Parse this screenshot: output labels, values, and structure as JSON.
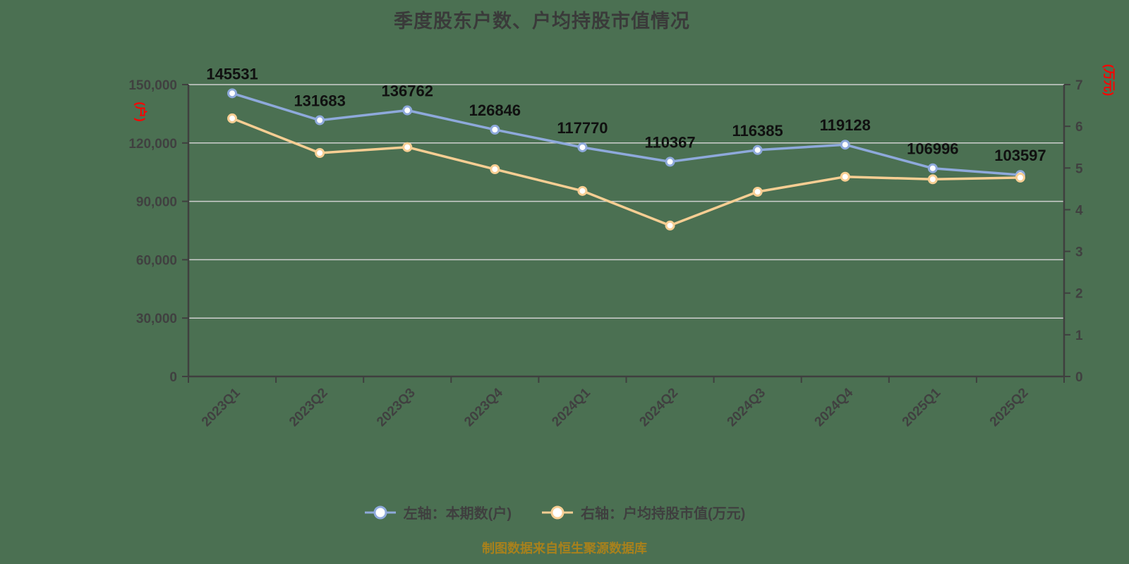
{
  "title": "季度股东户数、户均持股市值情况",
  "footer": "制图数据来自恒生聚源数据库",
  "colors": {
    "background": "#4B7052",
    "series_left": "#8EA9DB",
    "series_right": "#F7CE93",
    "marker_fill": "#FFFFFF",
    "grid_line": "#CFCFCF",
    "axis_line": "#3F3F3F",
    "tick_label": "#404040",
    "data_label": "#101010",
    "axis_name": "#FF0000",
    "title_color": "#3A3A3A",
    "footer_color": "#A8811C",
    "legend_text": "#3F3F3F"
  },
  "chart_data": {
    "type": "line",
    "title": "季度股东户数、户均持股市值情况",
    "categories": [
      "2023Q1",
      "2023Q2",
      "2023Q3",
      "2023Q4",
      "2024Q1",
      "2024Q2",
      "2024Q3",
      "2024Q4",
      "2025Q1",
      "2025Q2"
    ],
    "series": [
      {
        "name": "左轴：本期数(户)",
        "axis": "left",
        "color": "#8EA9DB",
        "values": [
          145531,
          131683,
          136762,
          126846,
          117770,
          110367,
          116385,
          119128,
          106996,
          103597
        ],
        "show_labels": true
      },
      {
        "name": "右轴：户均持股市值(万元)",
        "axis": "right",
        "color": "#F7CE93",
        "values": [
          6.19,
          5.36,
          5.5,
          4.97,
          4.45,
          3.62,
          4.43,
          4.79,
          4.73,
          4.77
        ],
        "show_labels": false
      }
    ],
    "left_axis": {
      "name": "(户)",
      "min": 0,
      "max": 150000,
      "tick_values": [
        0,
        30000,
        60000,
        90000,
        120000,
        150000
      ],
      "tick_labels": [
        "0",
        "30,000",
        "60,000",
        "90,000",
        "120,000",
        "150,000"
      ]
    },
    "right_axis": {
      "name": "(万元)",
      "min": 0,
      "max": 7,
      "tick_values": [
        0,
        1,
        2,
        3,
        4,
        5,
        6,
        7
      ],
      "tick_labels": [
        "0",
        "1",
        "2",
        "3",
        "4",
        "5",
        "6",
        "7"
      ]
    },
    "grid": true,
    "legend_position": "bottom",
    "x_label_rotation": -45
  }
}
